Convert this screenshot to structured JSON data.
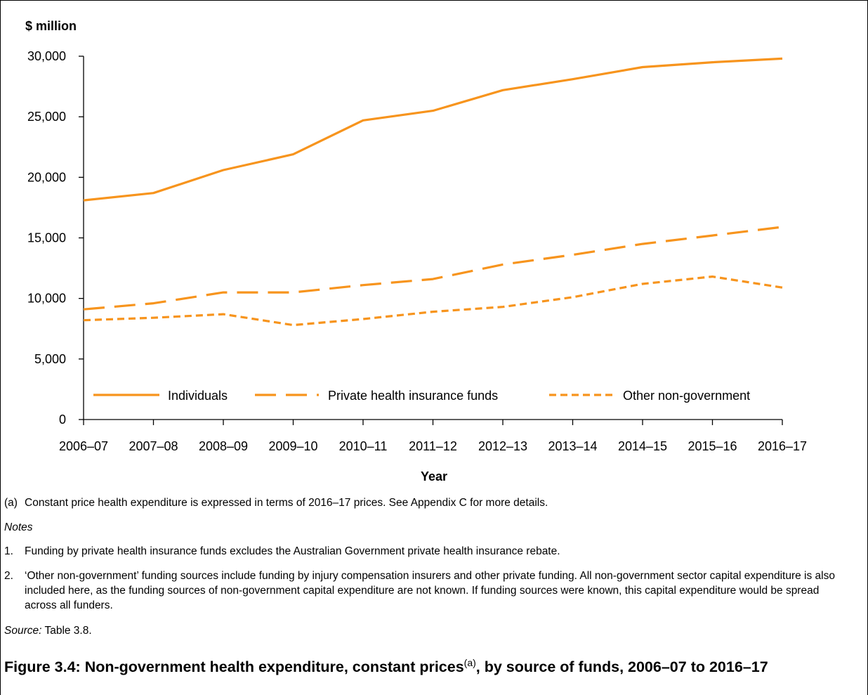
{
  "chart_data": {
    "type": "line",
    "ylabel": "$ million",
    "xlabel": "Year",
    "categories": [
      "2006–07",
      "2007–08",
      "2008–09",
      "2009–10",
      "2010–11",
      "2011–12",
      "2012–13",
      "2013–14",
      "2014–15",
      "2015–16",
      "2016–17"
    ],
    "ylim": [
      0,
      30000
    ],
    "yticks": [
      "0",
      "5,000",
      "10,000",
      "15,000",
      "20,000",
      "25,000",
      "30,000"
    ],
    "ytick_values": [
      0,
      5000,
      10000,
      15000,
      20000,
      25000,
      30000
    ],
    "grid": false,
    "legend_position": "bottom",
    "series": [
      {
        "name": "Individuals",
        "style": "solid",
        "values": [
          18100,
          18700,
          20600,
          21900,
          24700,
          25500,
          27200,
          28100,
          29100,
          29500,
          29800
        ]
      },
      {
        "name": "Private health insurance funds",
        "style": "long-dash",
        "values": [
          9100,
          9600,
          10500,
          10500,
          11100,
          11600,
          12800,
          13600,
          14500,
          15200,
          15900
        ]
      },
      {
        "name": "Other non-government",
        "style": "short-dash",
        "values": [
          8200,
          8400,
          8700,
          7800,
          8300,
          8900,
          9300,
          10100,
          11200,
          11800,
          10900
        ]
      }
    ],
    "line_color": "#F7941D"
  },
  "footnote_a_marker": "(a)",
  "footnote_a_text": "Constant price health expenditure is expressed in terms of 2016–17 prices. See Appendix C for more details.",
  "notes_heading": "Notes",
  "notes": [
    {
      "num": "1.",
      "text": "Funding by private health insurance funds excludes the Australian Government private health insurance rebate."
    },
    {
      "num": "2.",
      "text": "‘Other non-government’ funding sources include funding by injury compensation insurers and other private funding. All non-government sector capital expenditure is also included here, as the funding sources of non-government capital expenditure are not known. If funding sources were known, this capital expenditure would be spread across all funders."
    }
  ],
  "source_label": "Source:",
  "source_text": " Table 3.8.",
  "figure_title_main": "Figure 3.4: Non-government health expenditure, constant prices",
  "figure_title_sup": "(a)",
  "figure_title_rest": ", by source of funds, 2006–07 to 2016–17"
}
